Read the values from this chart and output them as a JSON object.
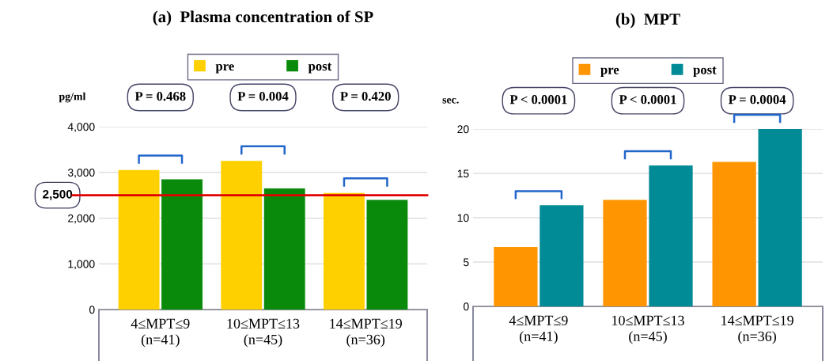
{
  "chart_data": [
    {
      "type": "bar",
      "title": "(a)  Plasma concentration of SP",
      "ylabel": "pg/ml",
      "categories": [
        "4≤MPT≤9\n(n=41)",
        "10≤MPT≤13\n(n=45)",
        "14≤MPT≤19\n(n=36)"
      ],
      "series": [
        {
          "name": "pre",
          "color": "#ffd000",
          "values": [
            3050,
            3250,
            2550
          ]
        },
        {
          "name": "post",
          "color": "#0a8a0a",
          "values": [
            2850,
            2650,
            2400
          ]
        }
      ],
      "ylim": [
        0,
        4000
      ],
      "yticks": [
        {
          "value": 0,
          "label": "0"
        },
        {
          "value": 1000,
          "label": "1,000"
        },
        {
          "value": 2000,
          "label": "2,000"
        },
        {
          "value": 3000,
          "label": "3,000"
        },
        {
          "value": 4000,
          "label": "4,000"
        }
      ],
      "ref_lines": [
        {
          "axis": "y",
          "value": 2500,
          "label": "2,500",
          "color": "#e00000"
        }
      ],
      "annotations": [
        "P = 0.468",
        "P = 0.004",
        "P = 0.420"
      ],
      "grid": "y",
      "legend": "top"
    },
    {
      "type": "bar",
      "title": "(b)  MPT",
      "ylabel": "sec.",
      "categories": [
        "4≤MPT≤9\n(n=41)",
        "10≤MPT≤13\n(n=45)",
        "14≤MPT≤19\n(n=36)"
      ],
      "series": [
        {
          "name": "pre",
          "color": "#ff9500",
          "values": [
            6.7,
            12.0,
            16.3
          ]
        },
        {
          "name": "post",
          "color": "#008b96",
          "values": [
            11.4,
            15.9,
            20.0
          ]
        }
      ],
      "ylim": [
        0,
        20
      ],
      "yticks": [
        0,
        5,
        10,
        15,
        20
      ],
      "annotations": [
        "P < 0.0001",
        "P < 0.0001",
        "P = 0.0004"
      ],
      "grid": "y",
      "legend": "top"
    }
  ]
}
